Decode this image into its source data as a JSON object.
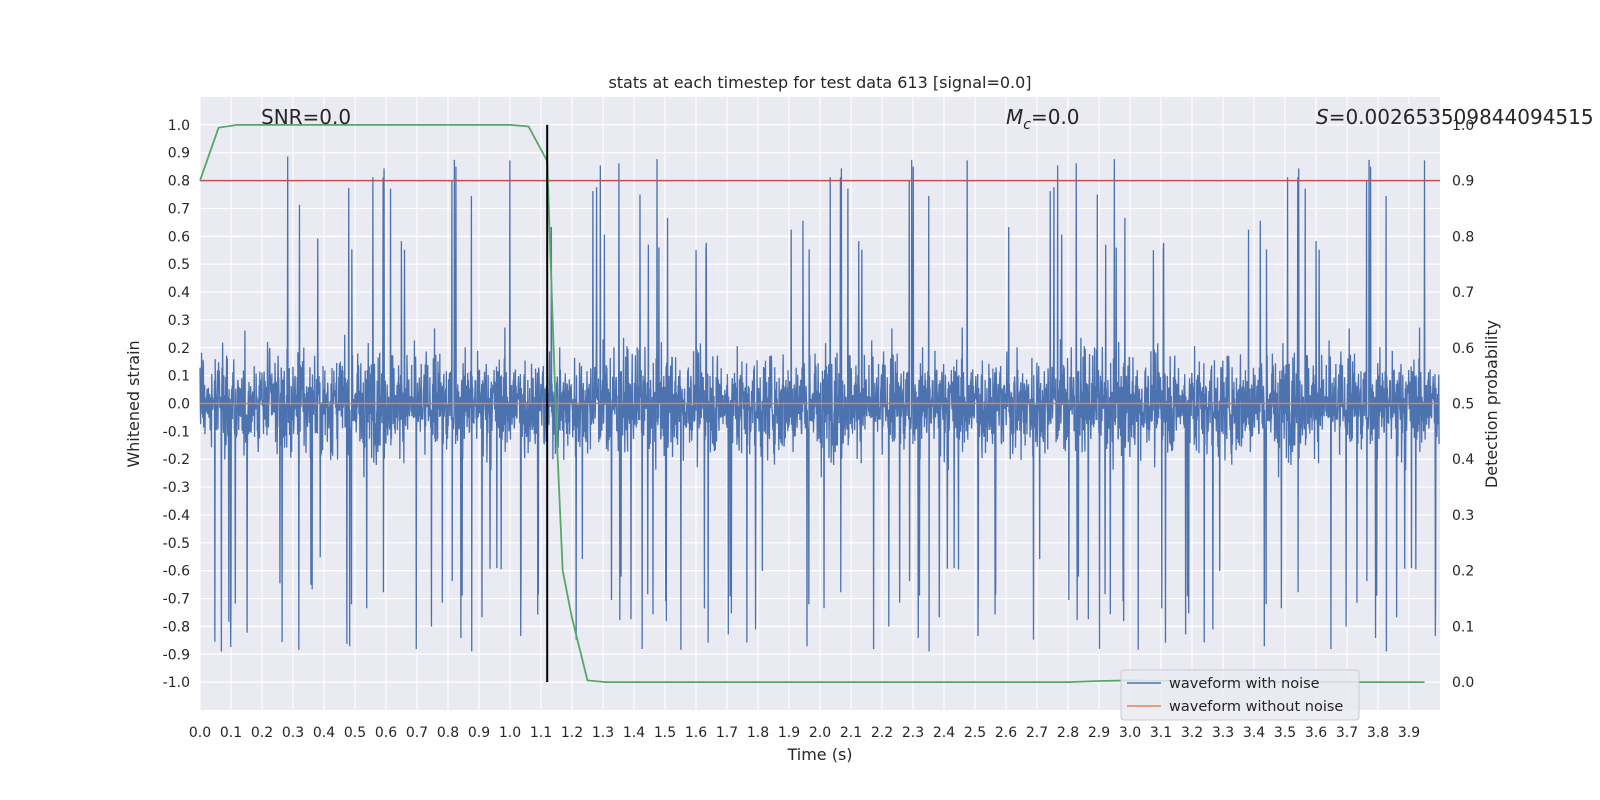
{
  "chart_data": {
    "type": "line",
    "title": "stats at each timestep for test data 613 [signal=0.0]",
    "xlabel": "Time (s)",
    "ylabel": "Whitened strain",
    "y2label": "Detection probability",
    "xlim": [
      0.0,
      4.0
    ],
    "ylim": [
      -1.1,
      1.1
    ],
    "y2lim": [
      -0.05,
      1.05
    ],
    "x_ticks": [
      "0.0",
      "0.1",
      "0.2",
      "0.3",
      "0.4",
      "0.5",
      "0.6",
      "0.7",
      "0.8",
      "0.9",
      "1.0",
      "1.1",
      "1.2",
      "1.3",
      "1.4",
      "1.5",
      "1.6",
      "1.7",
      "1.8",
      "1.9",
      "2.0",
      "2.1",
      "2.2",
      "2.3",
      "2.4",
      "2.5",
      "2.6",
      "2.7",
      "2.8",
      "2.9",
      "3.0",
      "3.1",
      "3.2",
      "3.3",
      "3.4",
      "3.5",
      "3.6",
      "3.7",
      "3.8",
      "3.9"
    ],
    "y_ticks": [
      "1.0",
      "0.9",
      "0.8",
      "0.7",
      "0.6",
      "0.5",
      "0.4",
      "0.3",
      "0.2",
      "0.1",
      "0.0",
      "-0.1",
      "-0.2",
      "-0.3",
      "-0.4",
      "-0.5",
      "-0.6",
      "-0.7",
      "-0.8",
      "-0.9",
      "-1.0"
    ],
    "y2_ticks": [
      "1.0",
      "0.9",
      "0.8",
      "0.7",
      "0.6",
      "0.5",
      "0.4",
      "0.3",
      "0.2",
      "0.1",
      "0.0"
    ],
    "grid": true,
    "legend_placement": "bottom-right",
    "annotations": {
      "snr": "SNR=0.0",
      "mc_symbol": "M",
      "mc_sub": "c",
      "mc_value": "=0.0",
      "s_symbol": "S",
      "s_value": "=0.002653509844094515"
    },
    "threshold_y2": 0.9,
    "peak_time": 1.12,
    "series": [
      {
        "name": "waveform with noise",
        "color": "#4c72b0",
        "axis": "left",
        "description_points": "noise, amplitude roughly within [-0.95, 1.0]"
      },
      {
        "name": "waveform without noise",
        "color": "#dd8452",
        "axis": "left",
        "constant": 0.0
      },
      {
        "axis": "right",
        "color": "#55a868",
        "x": [
          0.0,
          0.06,
          0.12,
          0.2,
          0.5,
          0.8,
          1.0,
          1.06,
          1.12,
          1.15,
          1.17,
          1.2,
          1.25,
          1.31,
          1.5,
          2.0,
          2.5,
          2.8,
          2.9,
          3.0,
          3.5,
          3.95
        ],
        "values": [
          0.9,
          0.995,
          1.0,
          1.0,
          1.0,
          1.0,
          1.0,
          0.997,
          0.935,
          0.45,
          0.2,
          0.115,
          0.003,
          0.0,
          0.0,
          0.0,
          0.0,
          0.0,
          0.002,
          0.003,
          0.0,
          0.0
        ]
      },
      {
        "axis": "right",
        "color": "#c44e52",
        "values": [
          0.9
        ]
      }
    ]
  }
}
